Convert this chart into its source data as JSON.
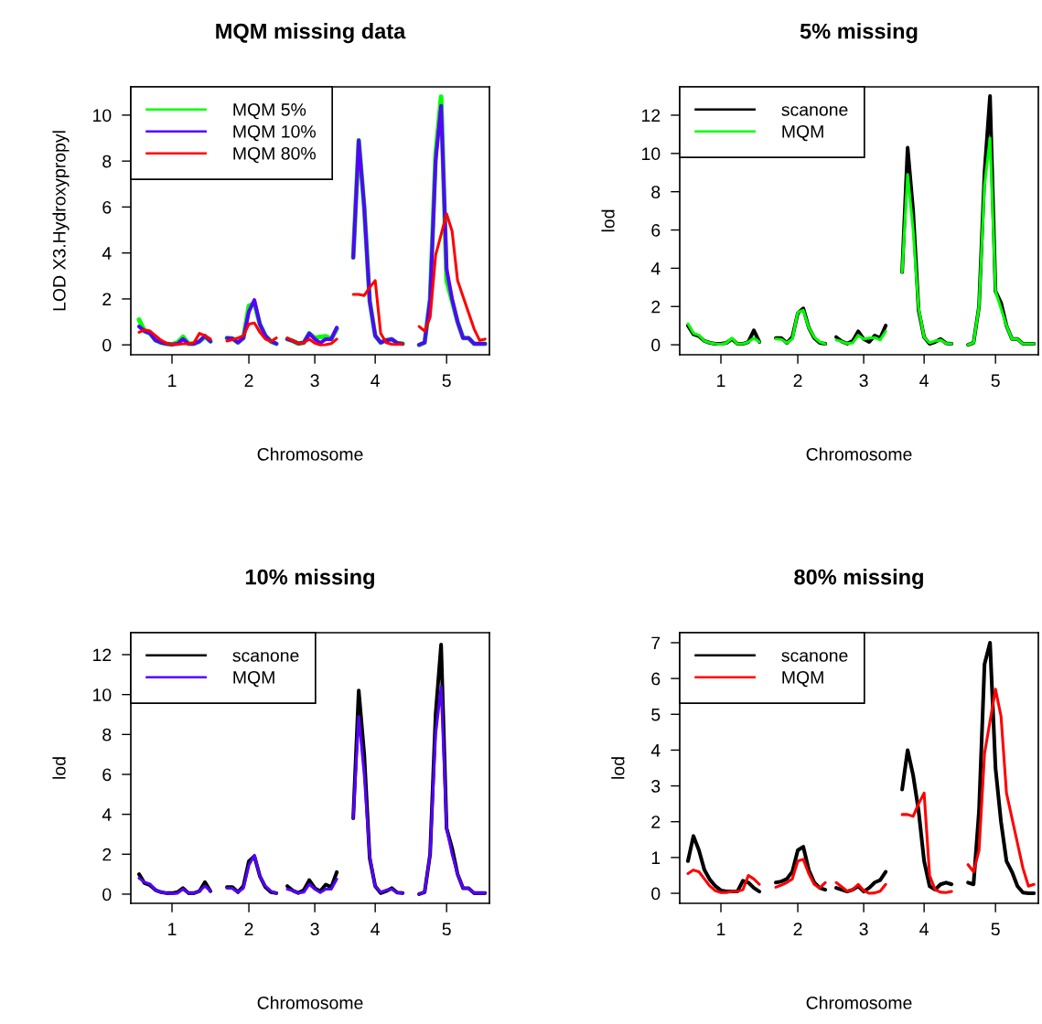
{
  "chart_data": [
    {
      "type": "line",
      "title": "MQM missing data",
      "xlabel": "Chromosome",
      "ylabel": "LOD X3.Hydroxypropyl",
      "legend": "top left",
      "line_style": "solid",
      "marker": "none",
      "categories": [
        null,
        null,
        null,
        null,
        null,
        null,
        null,
        "1",
        null,
        null,
        null,
        null,
        null,
        null,
        null,
        null,
        null,
        null,
        null,
        null,
        null,
        "2",
        null,
        null,
        null,
        null,
        null,
        null,
        null,
        null,
        null,
        null,
        null,
        "3",
        null,
        null,
        null,
        null,
        null,
        null,
        null,
        null,
        null,
        null,
        "4",
        null,
        null,
        null,
        null,
        null,
        null,
        null,
        null,
        null,
        null,
        null,
        null,
        "5",
        null,
        null,
        null,
        null,
        null,
        null,
        null
      ],
      "ylim": [
        -0.43,
        11.23
      ],
      "yticks": [
        0,
        2,
        4,
        6,
        8,
        10
      ],
      "series": [
        {
          "name": "MQM 5%",
          "color": "#00ff00",
          "values": [
            null,
            1.1,
            0.6,
            0.5,
            0.2,
            0.1,
            0.05,
            0.02,
            0.1,
            0.35,
            0.05,
            0.05,
            0.15,
            0.35,
            0.15,
            null,
            null,
            0.3,
            0.28,
            0.1,
            0.3,
            1.7,
            1.8,
            0.9,
            0.4,
            0.15,
            0.05,
            null,
            0.25,
            0.17,
            0.06,
            0.1,
            0.5,
            0.3,
            0.35,
            0.38,
            0.25,
            0.7,
            null,
            null,
            3.8,
            8.9,
            6,
            1.9,
            0.4,
            0.1,
            0.2,
            0.25,
            0.08,
            0.05,
            null,
            null,
            0,
            0.1,
            2.0,
            8.3,
            10.8,
            2.8,
            1.9,
            1.0,
            0.3,
            0.3,
            0.05,
            0.05,
            0.05
          ]
        },
        {
          "name": "MQM 10%",
          "color": "#5500ff",
          "values": [
            null,
            0.8,
            0.6,
            0.5,
            0.2,
            0.1,
            0.05,
            0.02,
            0.05,
            0.25,
            0.05,
            0.05,
            0.15,
            0.4,
            0.15,
            null,
            null,
            0.3,
            0.28,
            0.1,
            0.3,
            1.45,
            1.95,
            0.9,
            0.4,
            0.15,
            0.05,
            null,
            0.25,
            0.17,
            0.06,
            0.1,
            0.5,
            0.25,
            0.08,
            0.25,
            0.25,
            0.75,
            null,
            null,
            3.8,
            8.9,
            6,
            1.9,
            0.4,
            0.1,
            0.2,
            0.25,
            0.08,
            0.05,
            null,
            null,
            0,
            0.1,
            2.0,
            8.0,
            10.4,
            3.3,
            2.0,
            1.0,
            0.3,
            0.3,
            0.05,
            0.05,
            0.05
          ]
        },
        {
          "name": "MQM 80%",
          "color": "#ff0000",
          "values": [
            null,
            0.55,
            0.65,
            0.6,
            0.4,
            0.2,
            0.07,
            0.02,
            0.02,
            0.05,
            0.05,
            0.1,
            0.5,
            0.4,
            0.25,
            null,
            null,
            0.17,
            0.23,
            0.3,
            0.4,
            0.9,
            0.95,
            0.55,
            0.25,
            0.15,
            0.3,
            null,
            0.3,
            0.18,
            0.06,
            0.1,
            0.25,
            0.08,
            0,
            0.01,
            0.06,
            0.25,
            null,
            null,
            2.2,
            2.2,
            2.15,
            2.5,
            2.8,
            0.5,
            0.1,
            0.03,
            0.02,
            0.05,
            null,
            null,
            0.8,
            0.6,
            1.2,
            3.9,
            4.8,
            5.7,
            4.95,
            2.8,
            2.1,
            1.4,
            0.7,
            0.2,
            0.25
          ]
        }
      ]
    },
    {
      "type": "line",
      "title": "5% missing",
      "xlabel": "Chromosome",
      "ylabel": "lod",
      "legend": "top left",
      "line_style": "solid",
      "marker": "none",
      "categories": [
        null,
        null,
        null,
        null,
        null,
        null,
        null,
        "1",
        null,
        null,
        null,
        null,
        null,
        null,
        null,
        null,
        null,
        null,
        null,
        null,
        null,
        "2",
        null,
        null,
        null,
        null,
        null,
        null,
        null,
        null,
        null,
        null,
        null,
        "3",
        null,
        null,
        null,
        null,
        null,
        null,
        null,
        null,
        null,
        null,
        "4",
        null,
        null,
        null,
        null,
        null,
        null,
        null,
        null,
        null,
        null,
        null,
        null,
        "5",
        null,
        null,
        null,
        null,
        null,
        null,
        null
      ],
      "ylim": [
        -0.52,
        13.48
      ],
      "yticks": [
        0,
        2,
        4,
        6,
        8,
        10,
        12
      ],
      "series": [
        {
          "name": "scanone",
          "color": "#000000",
          "values": [
            null,
            1.0,
            0.55,
            0.45,
            0.2,
            0.1,
            0.05,
            0.05,
            0.1,
            0.3,
            0.05,
            0.05,
            0.15,
            0.75,
            0.15,
            null,
            null,
            0.35,
            0.35,
            0.1,
            0.4,
            1.65,
            1.9,
            0.9,
            0.35,
            0.1,
            0.05,
            null,
            0.4,
            0.18,
            0.06,
            0.2,
            0.7,
            0.3,
            0.15,
            0.48,
            0.35,
            1.0,
            null,
            null,
            3.8,
            10.3,
            7,
            1.8,
            0.4,
            0.05,
            0.15,
            0.3,
            0.08,
            0.05,
            null,
            null,
            0,
            0.1,
            2.0,
            9.0,
            13.0,
            2.8,
            2.2,
            1.0,
            0.3,
            0.3,
            0.05,
            0.05,
            0.05
          ]
        },
        {
          "name": "MQM",
          "color": "#00ff00",
          "values": [
            null,
            1.1,
            0.6,
            0.5,
            0.2,
            0.1,
            0.05,
            0.02,
            0.1,
            0.35,
            0.05,
            0.05,
            0.15,
            0.35,
            0.15,
            null,
            null,
            0.3,
            0.28,
            0.1,
            0.3,
            1.7,
            1.8,
            0.9,
            0.4,
            0.15,
            0.05,
            null,
            0.25,
            0.17,
            0.06,
            0.1,
            0.5,
            0.3,
            0.35,
            0.38,
            0.25,
            0.7,
            null,
            null,
            3.8,
            8.9,
            6,
            1.9,
            0.4,
            0.1,
            0.2,
            0.25,
            0.08,
            0.05,
            null,
            null,
            0,
            0.1,
            2.0,
            8.3,
            10.8,
            2.8,
            1.9,
            1.0,
            0.3,
            0.3,
            0.05,
            0.05,
            0.05
          ]
        }
      ]
    },
    {
      "type": "line",
      "title": "10% missing",
      "xlabel": "Chromosome",
      "ylabel": "lod",
      "legend": "top left",
      "line_style": "solid",
      "marker": "none",
      "categories": [
        null,
        null,
        null,
        null,
        null,
        null,
        null,
        "1",
        null,
        null,
        null,
        null,
        null,
        null,
        null,
        null,
        null,
        null,
        null,
        null,
        null,
        "2",
        null,
        null,
        null,
        null,
        null,
        null,
        null,
        null,
        null,
        null,
        null,
        "3",
        null,
        null,
        null,
        null,
        null,
        null,
        null,
        null,
        null,
        null,
        "4",
        null,
        null,
        null,
        null,
        null,
        null,
        null,
        null,
        null,
        null,
        null,
        null,
        "5",
        null,
        null,
        null,
        null,
        null,
        null,
        null
      ],
      "ylim": [
        -0.46,
        13.1
      ],
      "yticks": [
        0,
        2,
        4,
        6,
        8,
        10,
        12
      ],
      "series": [
        {
          "name": "scanone",
          "color": "#000000",
          "values": [
            null,
            1.0,
            0.55,
            0.45,
            0.2,
            0.1,
            0.05,
            0.05,
            0.1,
            0.3,
            0.05,
            0.05,
            0.15,
            0.6,
            0.15,
            null,
            null,
            0.35,
            0.35,
            0.1,
            0.4,
            1.65,
            1.9,
            0.9,
            0.35,
            0.1,
            0.05,
            null,
            0.4,
            0.18,
            0.06,
            0.2,
            0.7,
            0.3,
            0.15,
            0.48,
            0.35,
            1.1,
            null,
            null,
            3.8,
            10.2,
            7,
            1.8,
            0.4,
            0.05,
            0.15,
            0.3,
            0.08,
            0.05,
            null,
            null,
            0,
            0.1,
            2.0,
            9.0,
            12.5,
            3.3,
            2.3,
            1.0,
            0.3,
            0.3,
            0.05,
            0.05,
            0.05
          ]
        },
        {
          "name": "MQM",
          "color": "#5500ff",
          "values": [
            null,
            0.8,
            0.6,
            0.5,
            0.2,
            0.1,
            0.05,
            0.02,
            0.05,
            0.25,
            0.05,
            0.05,
            0.15,
            0.4,
            0.15,
            null,
            null,
            0.3,
            0.28,
            0.1,
            0.3,
            1.45,
            1.95,
            0.9,
            0.4,
            0.15,
            0.05,
            null,
            0.25,
            0.17,
            0.06,
            0.1,
            0.5,
            0.25,
            0.08,
            0.25,
            0.25,
            0.75,
            null,
            null,
            3.8,
            8.9,
            6,
            1.9,
            0.4,
            0.1,
            0.2,
            0.25,
            0.08,
            0.05,
            null,
            null,
            0,
            0.1,
            2.0,
            8.0,
            10.4,
            3.3,
            2.0,
            1.0,
            0.3,
            0.3,
            0.05,
            0.05,
            0.05
          ]
        }
      ]
    },
    {
      "type": "line",
      "title": "80% missing",
      "xlabel": "Chromosome",
      "ylabel": "lod",
      "legend": "top left",
      "line_style": "solid",
      "marker": "none",
      "categories": [
        null,
        null,
        null,
        null,
        null,
        null,
        null,
        "1",
        null,
        null,
        null,
        null,
        null,
        null,
        null,
        null,
        null,
        null,
        null,
        null,
        null,
        "2",
        null,
        null,
        null,
        null,
        null,
        null,
        null,
        null,
        null,
        null,
        null,
        "3",
        null,
        null,
        null,
        null,
        null,
        null,
        null,
        null,
        null,
        null,
        "4",
        null,
        null,
        null,
        null,
        null,
        null,
        null,
        null,
        null,
        null,
        null,
        null,
        "5",
        null,
        null,
        null,
        null,
        null,
        null,
        null
      ],
      "ylim": [
        -0.28,
        7.28
      ],
      "yticks": [
        0,
        1,
        2,
        3,
        4,
        5,
        6,
        7
      ],
      "series": [
        {
          "name": "scanone",
          "color": "#000000",
          "values": [
            null,
            0.9,
            1.6,
            1.2,
            0.65,
            0.38,
            0.2,
            0.08,
            0.05,
            0.05,
            0.05,
            0.35,
            0.3,
            0.15,
            0.05,
            null,
            null,
            0.3,
            0.33,
            0.4,
            0.6,
            1.2,
            1.3,
            0.65,
            0.3,
            0.15,
            0.1,
            null,
            0.15,
            0.1,
            0.05,
            0.1,
            0.2,
            0.05,
            0.15,
            0.3,
            0.37,
            0.6,
            null,
            null,
            2.9,
            4,
            3.3,
            2.3,
            0.9,
            0.2,
            0.1,
            0.25,
            0.3,
            0.25,
            null,
            null,
            0.3,
            0.25,
            2.3,
            6.4,
            7.0,
            3.5,
            2.0,
            0.9,
            0.6,
            0.2,
            0.02,
            0,
            0
          ]
        },
        {
          "name": "MQM",
          "color": "#ff0000",
          "values": [
            null,
            0.55,
            0.65,
            0.6,
            0.4,
            0.2,
            0.07,
            0.02,
            0.02,
            0.05,
            0.05,
            0.1,
            0.5,
            0.4,
            0.25,
            null,
            null,
            0.17,
            0.23,
            0.3,
            0.4,
            0.9,
            0.95,
            0.55,
            0.25,
            0.15,
            0.3,
            null,
            0.3,
            0.18,
            0.06,
            0.1,
            0.25,
            0.08,
            0,
            0.01,
            0.06,
            0.25,
            null,
            null,
            2.2,
            2.2,
            2.15,
            2.5,
            2.8,
            0.5,
            0.1,
            0.03,
            0.02,
            0.05,
            null,
            null,
            0.8,
            0.6,
            1.2,
            3.9,
            4.8,
            5.7,
            4.95,
            2.8,
            2.1,
            1.4,
            0.7,
            0.2,
            0.25
          ]
        }
      ]
    }
  ]
}
